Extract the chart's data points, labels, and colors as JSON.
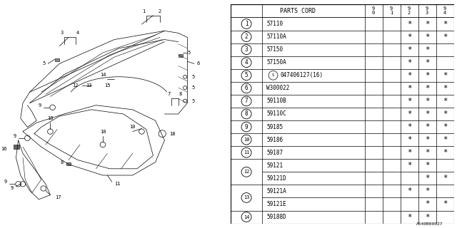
{
  "footer": "A540B00027",
  "bg_color": "#ffffff",
  "line_color": "#000000",
  "rows": [
    {
      "num": "1",
      "code": "57110",
      "s_circle": false,
      "cols": [
        false,
        false,
        true,
        true,
        true
      ]
    },
    {
      "num": "2",
      "code": "57110A",
      "s_circle": false,
      "cols": [
        false,
        false,
        true,
        true,
        true
      ]
    },
    {
      "num": "3",
      "code": "57150",
      "s_circle": false,
      "cols": [
        false,
        false,
        true,
        true,
        false
      ]
    },
    {
      "num": "4",
      "code": "57150A",
      "s_circle": false,
      "cols": [
        false,
        false,
        true,
        true,
        false
      ]
    },
    {
      "num": "5",
      "code": "047406127(16)",
      "s_circle": true,
      "cols": [
        false,
        false,
        true,
        true,
        true
      ]
    },
    {
      "num": "6",
      "code": "W300022",
      "s_circle": false,
      "cols": [
        false,
        false,
        true,
        true,
        true
      ]
    },
    {
      "num": "7",
      "code": "59110B",
      "s_circle": false,
      "cols": [
        false,
        false,
        true,
        true,
        true
      ]
    },
    {
      "num": "8",
      "code": "59110C",
      "s_circle": false,
      "cols": [
        false,
        false,
        true,
        true,
        true
      ]
    },
    {
      "num": "9",
      "code": "59185",
      "s_circle": false,
      "cols": [
        false,
        false,
        true,
        true,
        true
      ]
    },
    {
      "num": "10",
      "code": "59186",
      "s_circle": false,
      "cols": [
        false,
        false,
        true,
        true,
        true
      ]
    },
    {
      "num": "11",
      "code": "59187",
      "s_circle": false,
      "cols": [
        false,
        false,
        true,
        true,
        true
      ]
    },
    {
      "num": "12",
      "code": "59121",
      "s_circle": false,
      "cols": [
        false,
        false,
        true,
        true,
        false
      ],
      "sub": true
    },
    {
      "num": "12",
      "code": "59121D",
      "s_circle": false,
      "cols": [
        false,
        false,
        false,
        true,
        true
      ],
      "sub": true,
      "sub_only": true
    },
    {
      "num": "13",
      "code": "59121A",
      "s_circle": false,
      "cols": [
        false,
        false,
        true,
        true,
        false
      ],
      "sub": true
    },
    {
      "num": "13",
      "code": "59121E",
      "s_circle": false,
      "cols": [
        false,
        false,
        false,
        true,
        true
      ],
      "sub": true,
      "sub_only": true
    },
    {
      "num": "14",
      "code": "59188D",
      "s_circle": false,
      "cols": [
        false,
        false,
        true,
        true,
        false
      ]
    }
  ],
  "year_headers": [
    "9\n0",
    "9\n1",
    "9\n2",
    "9\n3",
    "9\n4"
  ],
  "font_size": 6.5,
  "star": "*"
}
